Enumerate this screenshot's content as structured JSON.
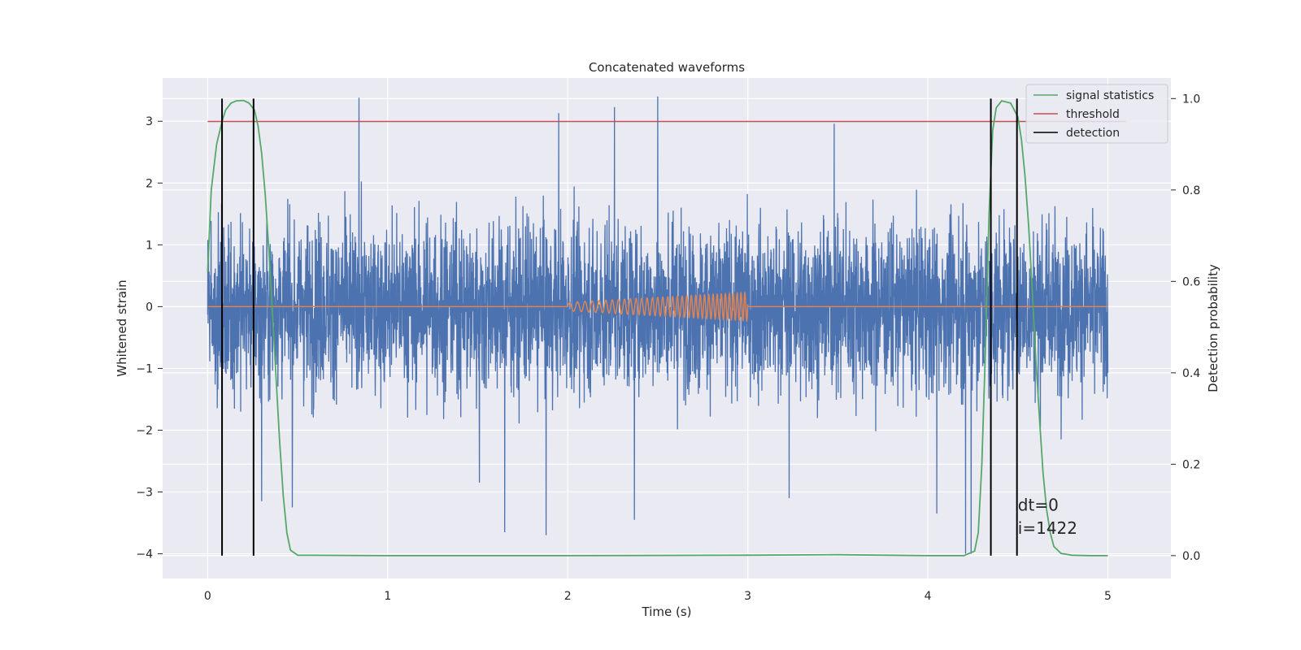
{
  "chart_data": {
    "type": "line",
    "title": "Concatenated waveforms",
    "xlabel": "Time (s)",
    "ylabel": "Whitened strain",
    "y2label": "Detection probability",
    "xlim": [
      -0.25,
      5.35
    ],
    "ylim": [
      -4.4,
      3.7
    ],
    "y2lim": [
      -0.05,
      1.045
    ],
    "xticks": [
      0,
      1,
      2,
      3,
      4,
      5
    ],
    "yticks": [
      -4,
      -3,
      -2,
      -1,
      0,
      1,
      2,
      3
    ],
    "y2ticks": [
      0.0,
      0.2,
      0.4,
      0.6,
      0.8,
      1.0
    ],
    "grid": true,
    "legend_position": "upper right",
    "colors": {
      "strain": "#4c72b0",
      "template": "#dd8452",
      "signal_statistics": "#55a868",
      "threshold": "#c44e52",
      "detection": "#000000",
      "plot_bg": "#eaeaf2",
      "grid": "#ffffff"
    },
    "series": [
      {
        "key": "strain",
        "note": "whitened noisy strain, 0–5 s, approx. 2048 Hz sampling",
        "t_start": 0,
        "t_end": 5,
        "typical_range": [
          -2.0,
          2.0
        ],
        "peaks": [
          {
            "x": 0.84,
            "y": 3.38
          },
          {
            "x": 1.95,
            "y": 3.13
          },
          {
            "x": 2.26,
            "y": 3.23
          },
          {
            "x": 2.5,
            "y": 3.4
          },
          {
            "x": 3.48,
            "y": 2.96
          },
          {
            "x": 1.88,
            "y": -3.7
          },
          {
            "x": 1.65,
            "y": -3.65
          },
          {
            "x": 2.37,
            "y": -3.45
          },
          {
            "x": 1.51,
            "y": -2.85
          },
          {
            "x": 4.21,
            "y": -4.0
          },
          {
            "x": 4.24,
            "y": -4.0
          },
          {
            "x": 3.23,
            "y": -3.1
          },
          {
            "x": 4.05,
            "y": -3.35
          },
          {
            "x": 0.47,
            "y": -3.25
          },
          {
            "x": 0.3,
            "y": -3.15
          }
        ]
      },
      {
        "key": "template",
        "note": "injected chirp, 2–3 s, amplitude grows from ~0.07 to ~0.23",
        "x_start": 2.0,
        "x_end": 3.0,
        "amp_start": 0.07,
        "amp_end": 0.23,
        "freq_start": 22,
        "freq_end": 48
      },
      {
        "key": "signal_statistics",
        "name": "signal statistics",
        "axis": "right",
        "x": [
          0,
          0.02,
          0.05,
          0.08,
          0.1,
          0.13,
          0.16,
          0.2,
          0.23,
          0.26,
          0.28,
          0.3,
          0.32,
          0.34,
          0.36,
          0.38,
          0.4,
          0.42,
          0.44,
          0.46,
          0.5,
          1.0,
          2.0,
          3.0,
          3.5,
          4.0,
          4.2,
          4.26,
          4.28,
          4.3,
          4.32,
          4.34,
          4.36,
          4.38,
          4.41,
          4.46,
          4.5,
          4.52,
          4.54,
          4.56,
          4.58,
          4.6,
          4.62,
          4.64,
          4.66,
          4.68,
          4.7,
          4.74,
          4.8,
          4.9,
          5.0
        ],
        "y": [
          0.62,
          0.8,
          0.9,
          0.95,
          0.975,
          0.99,
          0.995,
          0.996,
          0.99,
          0.975,
          0.94,
          0.88,
          0.79,
          0.67,
          0.53,
          0.39,
          0.25,
          0.13,
          0.05,
          0.012,
          0.001,
          0.0,
          0.0,
          0.001,
          0.002,
          0.0,
          0.0,
          0.01,
          0.05,
          0.2,
          0.45,
          0.75,
          0.93,
          0.98,
          0.995,
          0.99,
          0.96,
          0.91,
          0.83,
          0.72,
          0.58,
          0.43,
          0.3,
          0.18,
          0.1,
          0.05,
          0.02,
          0.005,
          0.001,
          0.0,
          0.0
        ]
      },
      {
        "key": "threshold",
        "name": "threshold",
        "axis": "right",
        "x": [
          0,
          5.1
        ],
        "y": [
          0.95,
          0.95
        ]
      },
      {
        "key": "detection",
        "name": "detection",
        "axis": "right",
        "vlines": [
          0.08,
          0.255,
          4.35,
          4.495
        ],
        "ymin": 0.0,
        "ymax": 1.0
      }
    ],
    "annotations": [
      {
        "x": 4.5,
        "y": -3.3,
        "text": "dt=0"
      },
      {
        "x": 4.5,
        "y": -3.68,
        "text": "i=1422"
      }
    ],
    "legend": [
      {
        "key": "signal_statistics",
        "label": "signal statistics"
      },
      {
        "key": "threshold",
        "label": "threshold"
      },
      {
        "key": "detection",
        "label": "detection"
      }
    ]
  }
}
